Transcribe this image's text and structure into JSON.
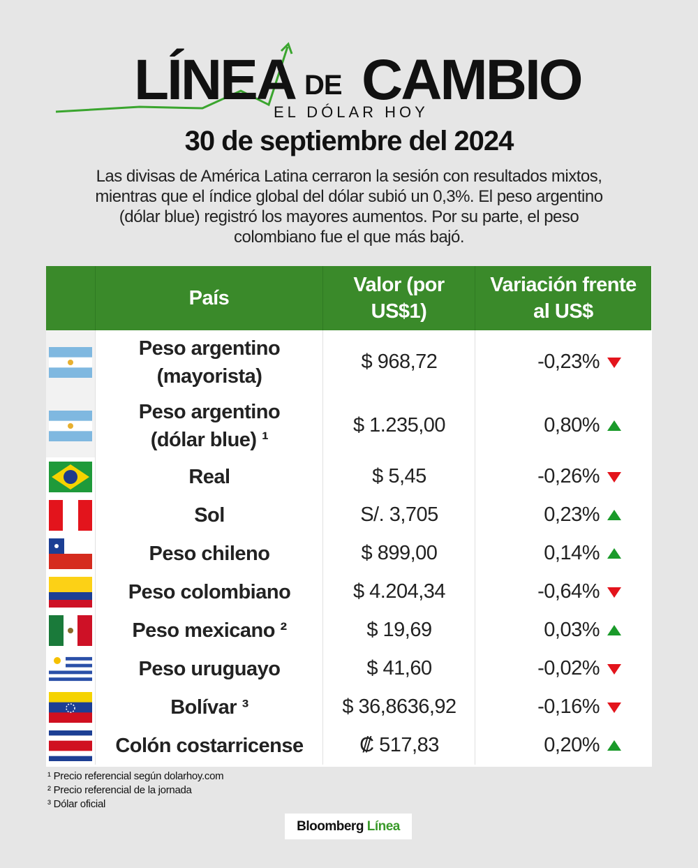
{
  "header": {
    "logo_word1": "LÍNEA",
    "logo_word2": "DE",
    "logo_word3": "CAMBIO",
    "logo_subtitle": "EL DÓLAR HOY",
    "date": "30 de septiembre del 2024",
    "description": "Las divisas de América Latina cerraron la sesión con resultados mixtos, mientras que el índice global del dólar subió un 0,3%. El peso argentino (dólar blue) registró los mayores aumentos. Por su parte, el peso colombiano fue el que más bajó."
  },
  "table": {
    "columns": [
      "País",
      "Valor (por US$1)",
      "Variación frente al US$"
    ],
    "rows": [
      [
        "Peso argentino (mayorista)",
        "$ 968,72",
        "-0,23%"
      ],
      [
        "Peso argentino (dólar blue) ¹",
        "$ 1.235,00",
        "0,80%"
      ],
      [
        "Real",
        "$ 5,45",
        "-0,26%"
      ],
      [
        "Sol",
        "S/. 3,705",
        "0,23%"
      ],
      [
        "Peso chileno",
        "$ 899,00",
        "0,14%"
      ],
      [
        "Peso colombiano",
        "$ 4.204,34",
        "-0,64%"
      ],
      [
        "Peso mexicano ²",
        "$ 19,69",
        "0,03%"
      ],
      [
        "Peso uruguayo",
        "$ 41,60",
        "-0,02%"
      ],
      [
        "Bolívar ³",
        "$ 36,8636,92",
        "-0,16%"
      ],
      [
        "Colón costarricense",
        "₡ 517,83",
        "0,20%"
      ]
    ]
  },
  "footnotes": [
    "¹ Precio referencial según dolarhoy.com",
    "² Precio referencial de la jornada",
    "³ Dólar oficial"
  ],
  "brand": {
    "name": "Bloomberg",
    "product": "Línea"
  }
}
